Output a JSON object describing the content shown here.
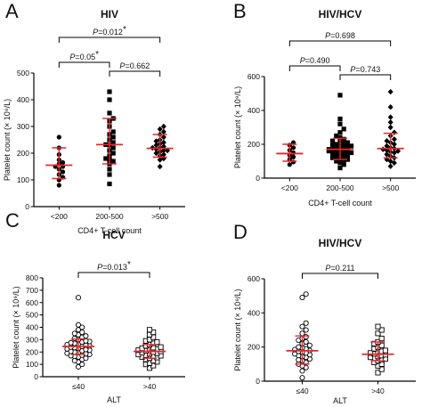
{
  "chart_data": [
    {
      "type": "scatter",
      "panel_letter": "A",
      "title": "HIV",
      "xlabel": "CD4+ T-cell count",
      "ylabel": "Platelet count (× 10⁹/L)",
      "ylim": [
        0,
        500
      ],
      "yticks": [
        "0",
        "100",
        "200",
        "300",
        "400",
        "500"
      ],
      "categories": [
        "<200",
        "200-500",
        ">500"
      ],
      "markers": [
        "circle",
        "square",
        "diamond"
      ],
      "comparisons": [
        {
          "from": 0,
          "to": 1,
          "label": "P=0.05",
          "star": "*"
        },
        {
          "from": 1,
          "to": 2,
          "label": "P=0.662",
          "star": ""
        },
        {
          "from": 0,
          "to": 2,
          "label": "P=0.012",
          "star": "*"
        }
      ],
      "summary": [
        {
          "median": 155,
          "low": 105,
          "high": 220
        },
        {
          "median": 232,
          "low": 160,
          "high": 330
        },
        {
          "median": 218,
          "low": 185,
          "high": 270
        }
      ],
      "groups": [
        [
          80,
          100,
          110,
          120,
          130,
          140,
          150,
          150,
          160,
          165,
          175,
          195,
          220,
          260
        ],
        [
          85,
          120,
          140,
          160,
          170,
          175,
          180,
          190,
          200,
          210,
          220,
          230,
          232,
          240,
          250,
          260,
          270,
          280,
          300,
          320,
          330,
          350,
          400,
          430
        ],
        [
          150,
          175,
          180,
          190,
          195,
          200,
          205,
          210,
          210,
          215,
          220,
          220,
          225,
          230,
          235,
          240,
          245,
          250,
          260,
          270,
          280,
          290,
          300
        ]
      ]
    },
    {
      "type": "scatter",
      "panel_letter": "B",
      "title": "HIV/HCV",
      "xlabel": "CD4+ T-cell count",
      "ylabel": "Platelet count (× 10⁹/L)",
      "ylim": [
        0,
        600
      ],
      "yticks": [
        "0",
        "200",
        "400",
        "600"
      ],
      "categories": [
        "<200",
        "200-500",
        ">500"
      ],
      "markers": [
        "circle",
        "square",
        "diamond"
      ],
      "comparisons": [
        {
          "from": 0,
          "to": 1,
          "label": "P=0.490",
          "star": ""
        },
        {
          "from": 1,
          "to": 2,
          "label": "P=0.743",
          "star": ""
        },
        {
          "from": 0,
          "to": 2,
          "label": "P=0.698",
          "star": ""
        }
      ],
      "summary": [
        {
          "median": 145,
          "low": 100,
          "high": 200
        },
        {
          "median": 170,
          "low": 110,
          "high": 235
        },
        {
          "median": 175,
          "low": 120,
          "high": 265
        }
      ],
      "groups": [
        [
          80,
          95,
          110,
          125,
          135,
          150,
          165,
          180,
          195,
          210
        ],
        [
          60,
          80,
          90,
          100,
          105,
          110,
          115,
          120,
          125,
          130,
          135,
          140,
          145,
          150,
          150,
          155,
          160,
          160,
          165,
          170,
          170,
          175,
          180,
          185,
          190,
          190,
          195,
          200,
          205,
          210,
          215,
          220,
          230,
          240,
          250,
          270,
          290,
          320,
          350,
          490
        ],
        [
          70,
          90,
          100,
          110,
          120,
          130,
          140,
          150,
          155,
          160,
          165,
          170,
          175,
          180,
          190,
          200,
          210,
          220,
          230,
          250,
          270,
          300,
          330,
          360,
          420,
          510
        ]
      ]
    },
    {
      "type": "scatter",
      "panel_letter": "C",
      "title": "HCV",
      "xlabel": "ALT",
      "ylabel": "Platelet count (× 10⁹/L)",
      "ylim": [
        0,
        800
      ],
      "yticks": [
        "0",
        "100",
        "200",
        "300",
        "400",
        "500",
        "600",
        "700",
        "800"
      ],
      "categories": [
        "≤40",
        ">40"
      ],
      "markers": [
        "open-circle",
        "open-square"
      ],
      "comparisons": [
        {
          "from": 0,
          "to": 1,
          "label": "P=0.013",
          "star": "*"
        }
      ],
      "summary": [
        {
          "median": 245,
          "low": 180,
          "high": 305
        },
        {
          "median": 205,
          "low": 150,
          "high": 260
        }
      ],
      "groups": [
        [
          80,
          100,
          120,
          130,
          140,
          150,
          160,
          165,
          170,
          175,
          180,
          185,
          190,
          195,
          200,
          205,
          210,
          215,
          220,
          225,
          230,
          235,
          240,
          245,
          250,
          255,
          260,
          265,
          270,
          275,
          280,
          285,
          290,
          300,
          310,
          320,
          330,
          340,
          350,
          360,
          380,
          400,
          420,
          640
        ],
        [
          70,
          90,
          100,
          110,
          120,
          130,
          140,
          150,
          155,
          160,
          165,
          170,
          175,
          180,
          185,
          190,
          195,
          200,
          205,
          210,
          215,
          220,
          225,
          230,
          235,
          240,
          250,
          260,
          270,
          280,
          290,
          300,
          320,
          340,
          360,
          380
        ]
      ]
    },
    {
      "type": "scatter",
      "panel_letter": "D",
      "title": "HIV/HCV",
      "xlabel": "ALT",
      "ylabel": "Platelet count (× 10⁹/L)",
      "ylim": [
        0,
        600
      ],
      "yticks": [
        "0",
        "200",
        "400",
        "600"
      ],
      "categories": [
        "≤40",
        ">40"
      ],
      "markers": [
        "open-circle",
        "open-square"
      ],
      "comparisons": [
        {
          "from": 0,
          "to": 1,
          "label": "P=0.211",
          "star": ""
        }
      ],
      "summary": [
        {
          "median": 178,
          "low": 100,
          "high": 265
        },
        {
          "median": 158,
          "low": 120,
          "high": 230
        }
      ],
      "groups": [
        [
          20,
          60,
          80,
          90,
          100,
          110,
          120,
          125,
          130,
          140,
          145,
          150,
          155,
          160,
          165,
          170,
          175,
          180,
          185,
          190,
          195,
          200,
          210,
          220,
          230,
          240,
          250,
          260,
          280,
          300,
          320,
          340,
          490,
          510
        ],
        [
          50,
          70,
          90,
          100,
          110,
          120,
          125,
          130,
          135,
          140,
          145,
          150,
          155,
          160,
          165,
          170,
          175,
          180,
          190,
          200,
          210,
          220,
          230,
          250,
          280,
          300,
          320
        ]
      ]
    }
  ]
}
